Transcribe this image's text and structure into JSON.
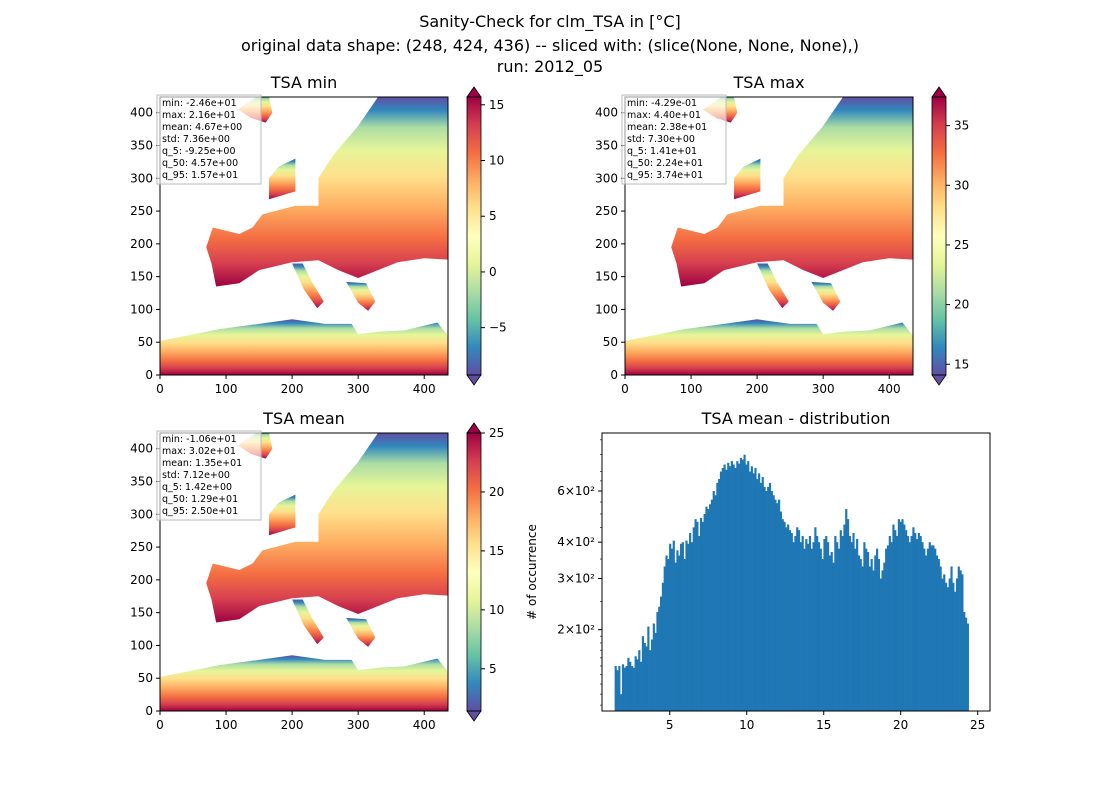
{
  "figure": {
    "title_lines": [
      "Sanity-Check for clm_TSA in [°C]",
      "original data shape: (248, 424, 436) -- sliced with: (slice(None, None, None),)",
      "run: 2012_05"
    ]
  },
  "colors": {
    "spectral_r": [
      "#5e4fa2",
      "#3288bd",
      "#66c2a5",
      "#abdda4",
      "#e6f598",
      "#ffffbf",
      "#fee08b",
      "#fdae61",
      "#f46d43",
      "#d53e4f",
      "#9e0142"
    ],
    "hist_bar": "#1f77b4"
  },
  "chart_data": [
    {
      "type": "heatmap",
      "title": "TSA min",
      "xlim": [
        0,
        436
      ],
      "ylim": [
        0,
        424
      ],
      "x_ticks": [
        0,
        100,
        200,
        300,
        400
      ],
      "y_ticks": [
        0,
        50,
        100,
        150,
        200,
        250,
        300,
        350,
        400
      ],
      "colorbar": {
        "range": [
          -9.25,
          15.7
        ],
        "ticks": [
          -5,
          0,
          5,
          10,
          15
        ]
      },
      "stats": [
        "min: -2.46e+01",
        "max: 2.16e+01",
        "mean: 4.67e+00",
        "std: 7.36e+00",
        "q_5: -9.25e+00",
        "q_50: 4.57e+00",
        "q_95: 1.57e+01"
      ]
    },
    {
      "type": "heatmap",
      "title": "TSA max",
      "xlim": [
        0,
        436
      ],
      "ylim": [
        0,
        424
      ],
      "x_ticks": [
        0,
        100,
        200,
        300,
        400
      ],
      "y_ticks": [
        0,
        50,
        100,
        150,
        200,
        250,
        300,
        350,
        400
      ],
      "colorbar": {
        "range": [
          14.1,
          37.4
        ],
        "ticks": [
          15,
          20,
          25,
          30,
          35
        ]
      },
      "stats": [
        "min: -4.29e-01",
        "max: 4.40e+01",
        "mean: 2.38e+01",
        "std: 7.30e+00",
        "q_5: 1.41e+01",
        "q_50: 2.24e+01",
        "q_95: 3.74e+01"
      ]
    },
    {
      "type": "heatmap",
      "title": "TSA mean",
      "xlim": [
        0,
        436
      ],
      "ylim": [
        0,
        424
      ],
      "x_ticks": [
        0,
        100,
        200,
        300,
        400
      ],
      "y_ticks": [
        0,
        50,
        100,
        150,
        200,
        250,
        300,
        350,
        400
      ],
      "colorbar": {
        "range": [
          1.42,
          25.0
        ],
        "ticks": [
          5,
          10,
          15,
          20,
          25
        ]
      },
      "stats": [
        "min: -1.06e+01",
        "max: 3.02e+01",
        "mean: 1.35e+01",
        "std: 7.12e+00",
        "q_5: 1.42e+00",
        "q_50: 1.29e+01",
        "q_95: 2.50e+01"
      ]
    },
    {
      "type": "bar",
      "title": "TSA mean - distribution",
      "ylabel": "# of occurrence",
      "yscale": "log",
      "xlim": [
        0.6,
        25.8
      ],
      "ylim": [
        105,
        950
      ],
      "x_ticks": [
        5,
        10,
        15,
        20,
        25
      ],
      "y_ticks": [
        {
          "value": 200,
          "label": "2×10²"
        },
        {
          "value": 300,
          "label": "3×10²"
        },
        {
          "value": 400,
          "label": "4×10²"
        },
        {
          "value": 600,
          "label": "6×10²"
        }
      ],
      "bins": {
        "start": 1.42,
        "width": 0.1179
      },
      "values": [
        150,
        145,
        150,
        120,
        152,
        148,
        150,
        160,
        155,
        150,
        148,
        162,
        158,
        170,
        155,
        190,
        180,
        175,
        205,
        170,
        185,
        210,
        195,
        230,
        240,
        260,
        290,
        330,
        360,
        350,
        395,
        380,
        405,
        340,
        375,
        360,
        395,
        400,
        350,
        405,
        395,
        430,
        400,
        450,
        480,
        470,
        420,
        485,
        470,
        500,
        530,
        520,
        540,
        560,
        600,
        580,
        640,
        660,
        700,
        720,
        740,
        710,
        750,
        730,
        760,
        740,
        720,
        760,
        745,
        780,
        770,
        800,
        740,
        760,
        700,
        730,
        690,
        720,
        660,
        690,
        640,
        670,
        620,
        600,
        620,
        640,
        600,
        580,
        560,
        545,
        560,
        510,
        480,
        470,
        450,
        460,
        440,
        430,
        400,
        420,
        450,
        440,
        400,
        420,
        380,
        410,
        395,
        420,
        380,
        400,
        450,
        420,
        400,
        380,
        350,
        410,
        420,
        400,
        360,
        370,
        340,
        420,
        400,
        380,
        440,
        420,
        460,
        520,
        480,
        420,
        400,
        430,
        380,
        410,
        360,
        350,
        330,
        400,
        380,
        370,
        330,
        350,
        320,
        360,
        380,
        350,
        300,
        320,
        340,
        380,
        390,
        420,
        400,
        460,
        440,
        420,
        480,
        470,
        480,
        460,
        440,
        420,
        400,
        420,
        450,
        430,
        410,
        430,
        420,
        400,
        380,
        360,
        380,
        400,
        390,
        390,
        380,
        360,
        350,
        330,
        300,
        310,
        290,
        280,
        300,
        330,
        290,
        270,
        300,
        330,
        320,
        310,
        230,
        220,
        210
      ]
    }
  ]
}
